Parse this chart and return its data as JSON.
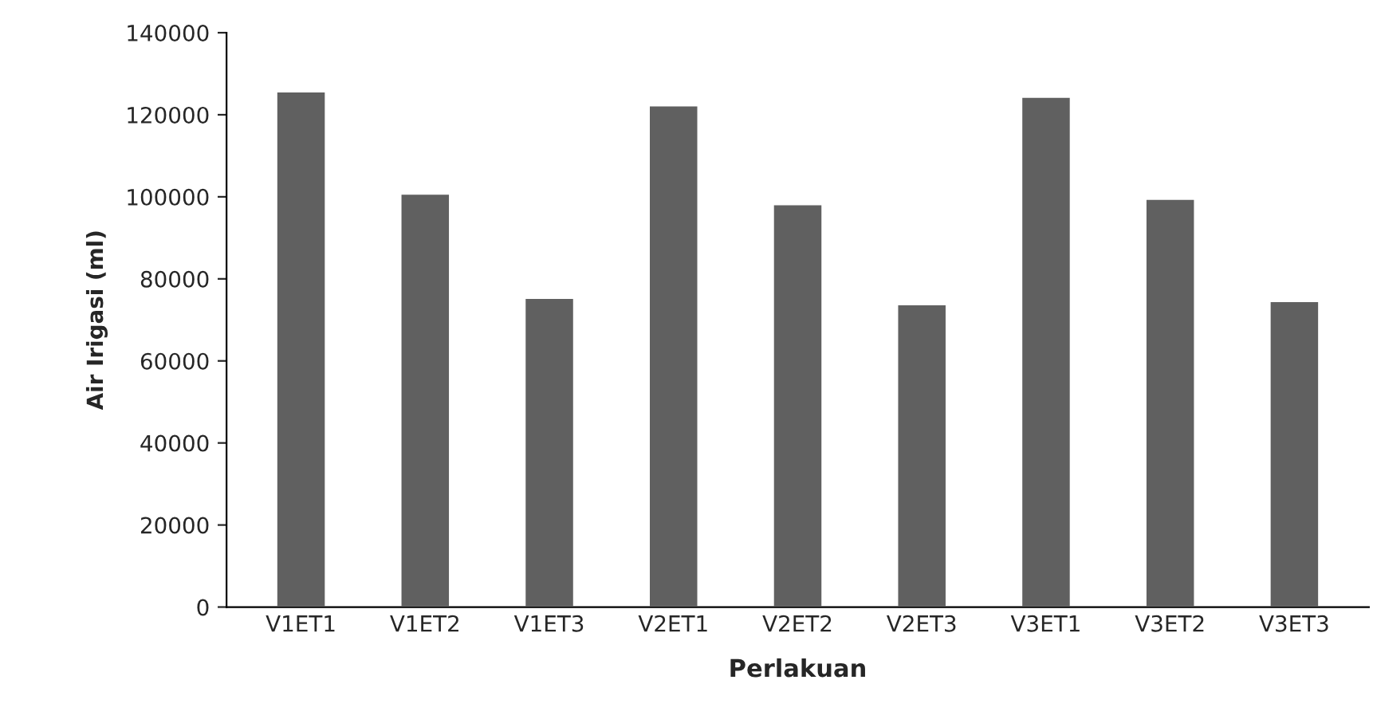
{
  "chart_data": {
    "type": "bar",
    "xlabel": "Perlakuan",
    "ylabel": "Air Irigasi (ml)",
    "categories": [
      "V1ET1",
      "V1ET2",
      "V1ET3",
      "V2ET1",
      "V2ET2",
      "V2ET3",
      "V3ET1",
      "V3ET2",
      "V3ET3"
    ],
    "values": [
      125700,
      100800,
      75400,
      122300,
      98200,
      73800,
      124400,
      99500,
      74600
    ],
    "color": "#606060",
    "ylim": [
      0,
      140000
    ],
    "yticks": [
      0,
      20000,
      40000,
      60000,
      80000,
      100000,
      120000,
      140000
    ],
    "grid": false,
    "legend": false
  }
}
